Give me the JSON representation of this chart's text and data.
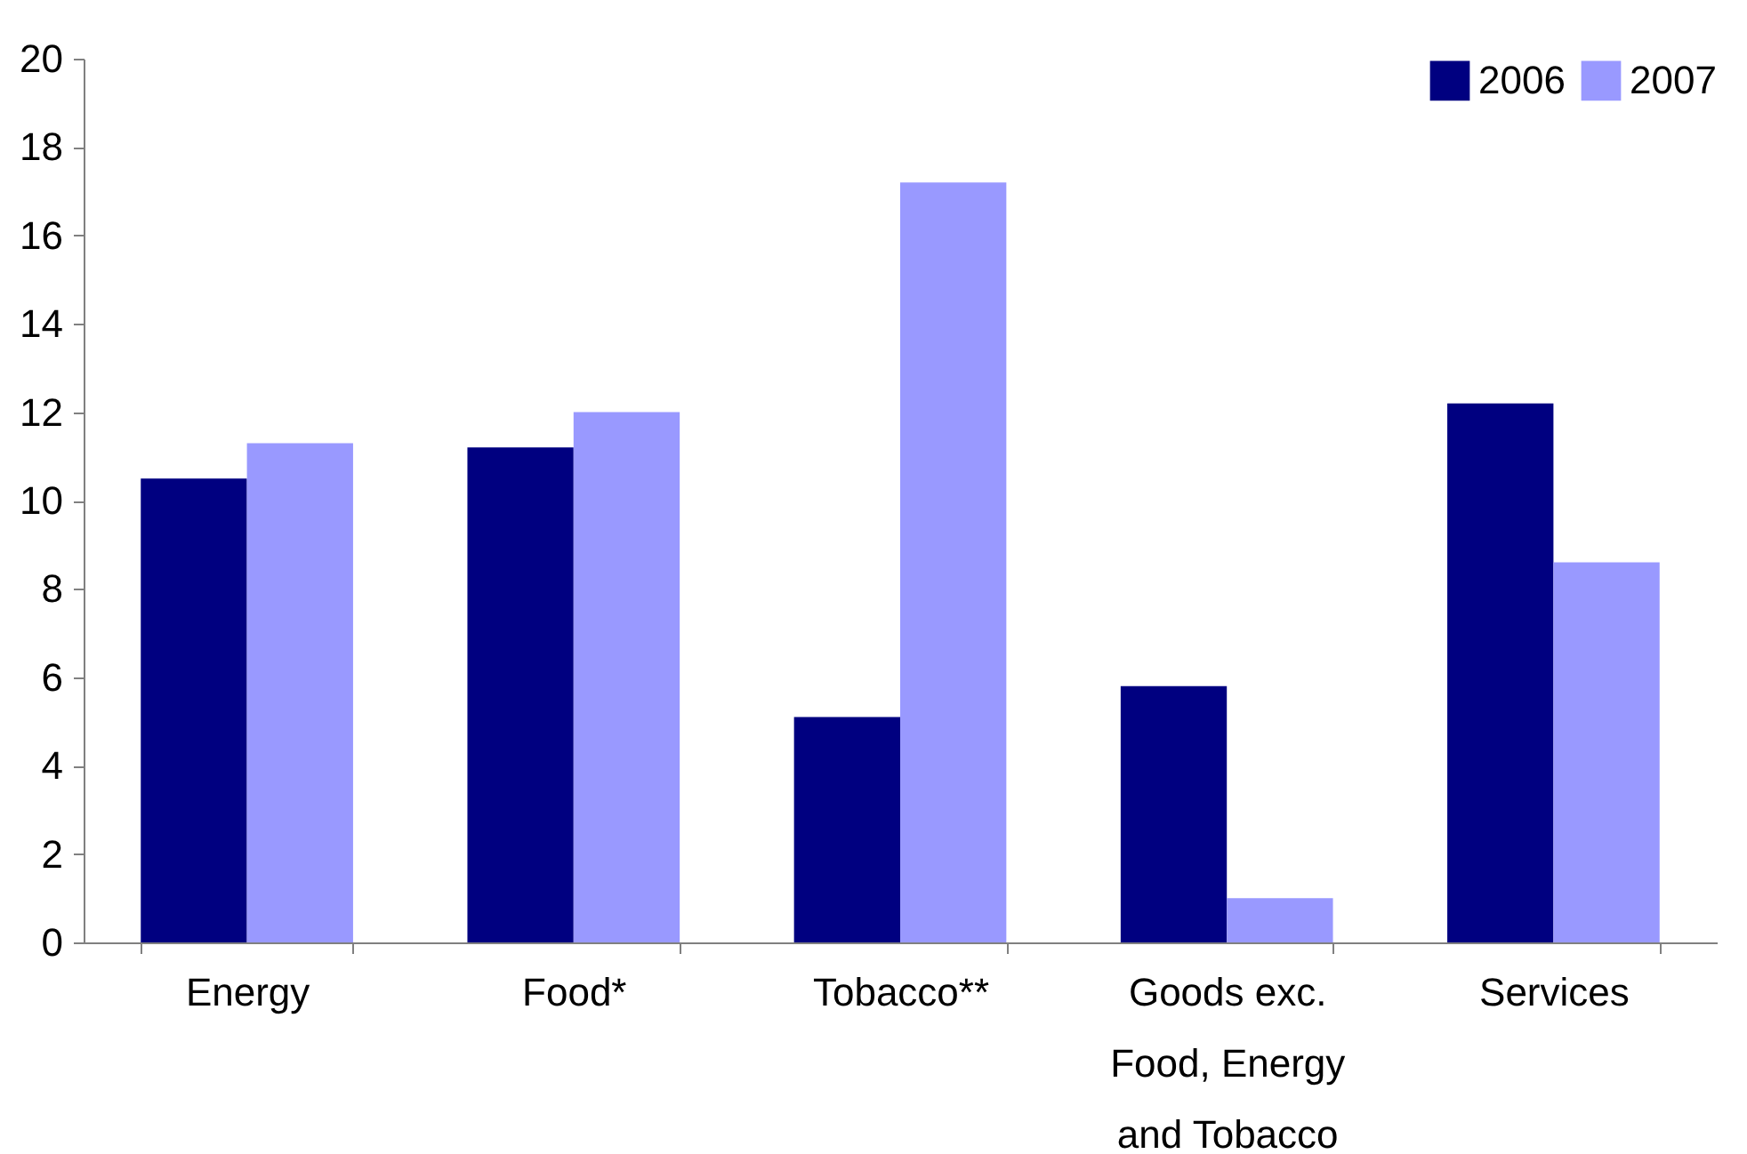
{
  "chart_data": {
    "type": "bar",
    "categories": [
      "Energy",
      "Food*",
      "Tobacco**",
      "Goods exc. Food, Energy and Tobacco",
      "Services"
    ],
    "series": [
      {
        "name": "2006",
        "color": "#000080",
        "values": [
          10.5,
          11.2,
          5.1,
          5.8,
          12.2
        ]
      },
      {
        "name": "2007",
        "color": "#9999ff",
        "values": [
          11.3,
          12.0,
          17.2,
          1.0,
          8.6
        ]
      }
    ],
    "ylim": [
      0,
      20
    ],
    "yticks": [
      0,
      2,
      4,
      6,
      8,
      10,
      12,
      14,
      16,
      18,
      20
    ],
    "grid": false,
    "legend": "top right"
  }
}
